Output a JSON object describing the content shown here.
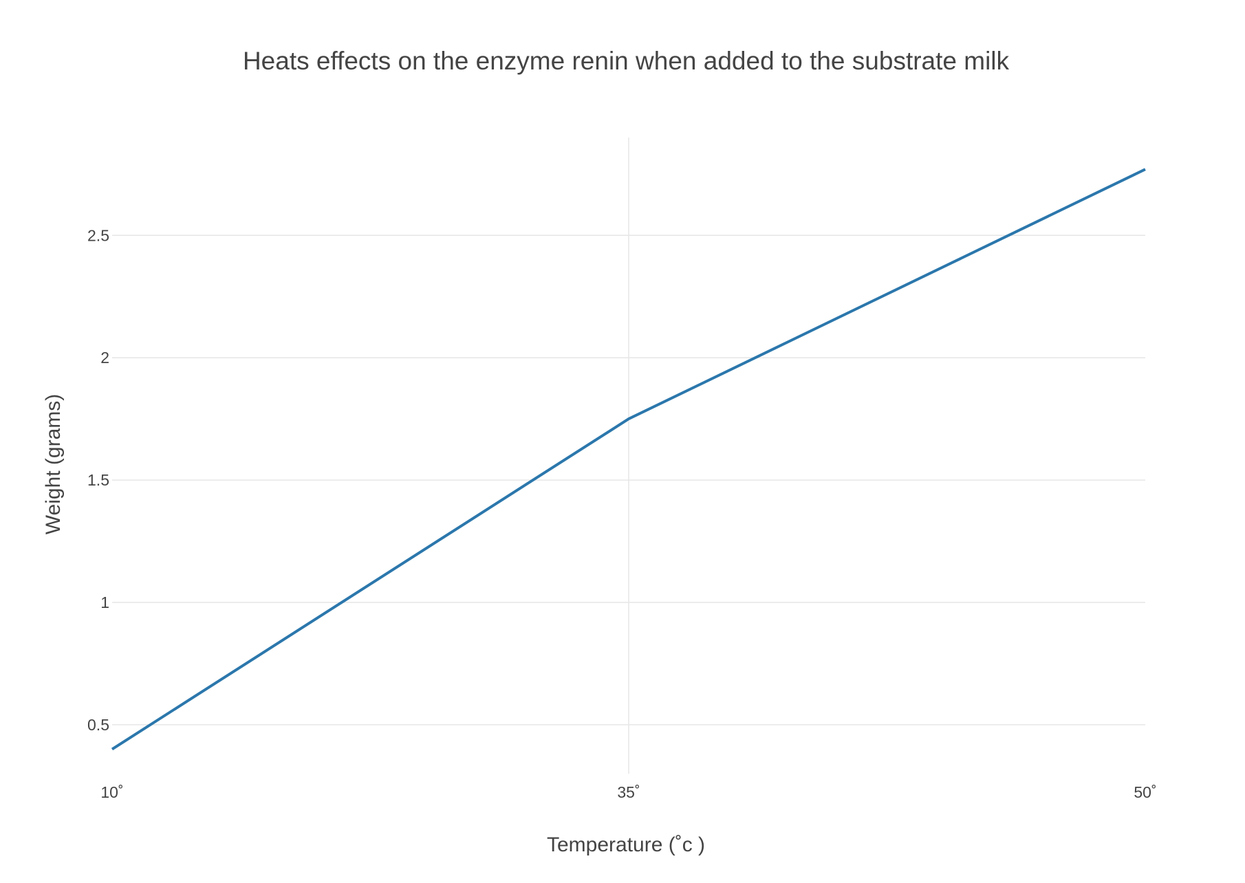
{
  "chart_data": {
    "type": "line",
    "title": "Heats effects on the enzyme renin when added to the substrate milk",
    "xlabel": "Temperature (˚c )",
    "ylabel": "Weight (grams)",
    "x_categories": [
      "10˚",
      "35˚",
      "50˚"
    ],
    "series": [
      {
        "color": "#2b77ac",
        "x": [
          "10˚",
          "35˚",
          "50˚"
        ],
        "y": [
          0.4,
          1.75,
          2.77
        ]
      }
    ],
    "ylim": [
      0.3,
      2.9
    ],
    "yticks": [
      0.5,
      1,
      1.5,
      2,
      2.5
    ],
    "ytick_labels": [
      "0.5",
      "1",
      "1.5",
      "2",
      "2.5"
    ],
    "grid": true,
    "legend": "none"
  }
}
